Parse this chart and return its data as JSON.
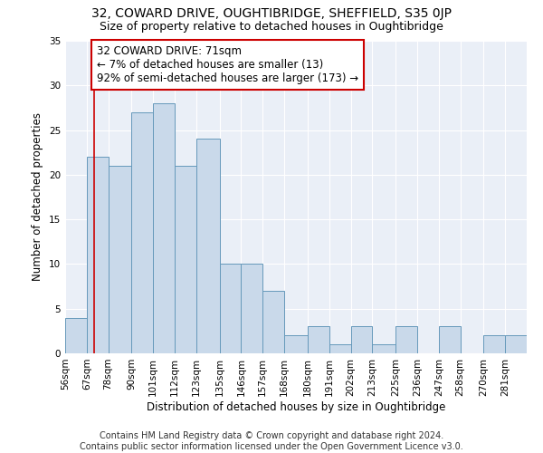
{
  "title1": "32, COWARD DRIVE, OUGHTIBRIDGE, SHEFFIELD, S35 0JP",
  "title2": "Size of property relative to detached houses in Oughtibridge",
  "xlabel": "Distribution of detached houses by size in Oughtibridge",
  "ylabel": "Number of detached properties",
  "bin_labels": [
    "56sqm",
    "67sqm",
    "78sqm",
    "90sqm",
    "101sqm",
    "112sqm",
    "123sqm",
    "135sqm",
    "146sqm",
    "157sqm",
    "168sqm",
    "180sqm",
    "191sqm",
    "202sqm",
    "213sqm",
    "225sqm",
    "236sqm",
    "247sqm",
    "258sqm",
    "270sqm",
    "281sqm"
  ],
  "bin_edges": [
    56,
    67,
    78,
    90,
    101,
    112,
    123,
    135,
    146,
    157,
    168,
    180,
    191,
    202,
    213,
    225,
    236,
    247,
    258,
    270,
    281,
    292
  ],
  "counts": [
    4,
    22,
    21,
    27,
    28,
    21,
    24,
    10,
    10,
    7,
    2,
    3,
    1,
    3,
    1,
    3,
    0,
    3,
    0,
    2,
    2
  ],
  "bar_color": "#c9d9ea",
  "bar_edge_color": "#6699bb",
  "vline_x": 71,
  "vline_color": "#cc0000",
  "annotation_text": "32 COWARD DRIVE: 71sqm\n← 7% of detached houses are smaller (13)\n92% of semi-detached houses are larger (173) →",
  "annotation_box_color": "#ffffff",
  "annotation_box_edge": "#cc0000",
  "ylim": [
    0,
    35
  ],
  "yticks": [
    0,
    5,
    10,
    15,
    20,
    25,
    30,
    35
  ],
  "background_color": "#eaeff7",
  "footer": "Contains HM Land Registry data © Crown copyright and database right 2024.\nContains public sector information licensed under the Open Government Licence v3.0.",
  "title_fontsize": 10,
  "subtitle_fontsize": 9,
  "axis_label_fontsize": 8.5,
  "tick_fontsize": 7.5,
  "annotation_fontsize": 8.5,
  "footer_fontsize": 7
}
